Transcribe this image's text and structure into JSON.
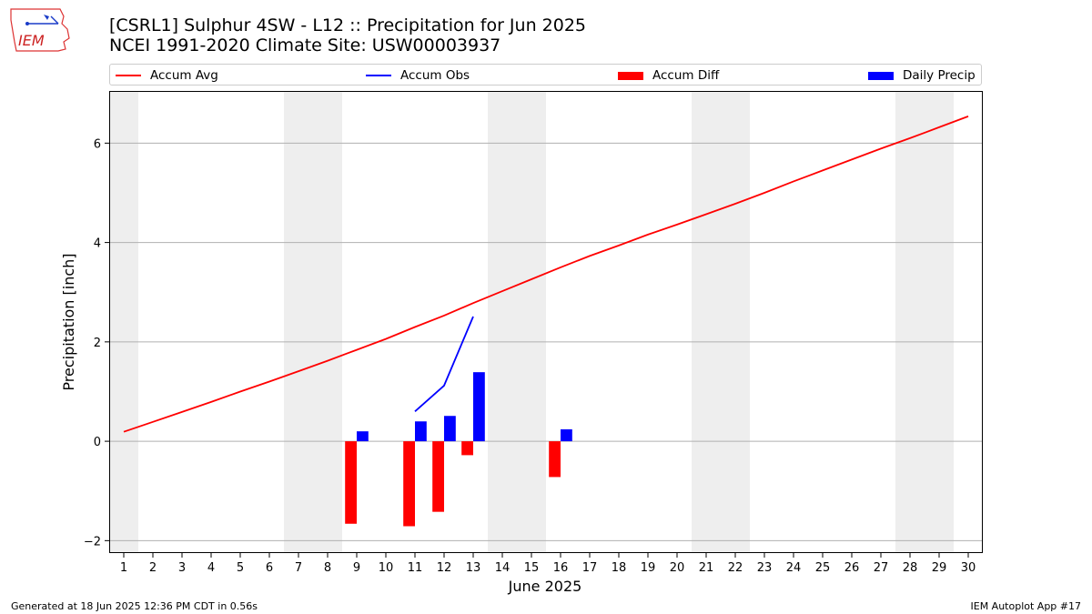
{
  "header": {
    "title_line1": "[CSRL1] Sulphur 4SW - L12 :: Precipitation for Jun 2025",
    "title_line2": "NCEI 1991-2020 Climate Site: USW00003937",
    "logo_text": "IEM"
  },
  "legend": {
    "items": [
      {
        "label": "Accum Avg",
        "kind": "line",
        "color": "#ff0000"
      },
      {
        "label": "Accum Obs",
        "kind": "line",
        "color": "#0000ff"
      },
      {
        "label": "Accum Diff",
        "kind": "bar",
        "color": "#ff0000"
      },
      {
        "label": "Daily Precip",
        "kind": "bar",
        "color": "#0000ff"
      }
    ]
  },
  "footer": {
    "left": "Generated at 18 Jun 2025 12:36 PM CDT in 0.56s",
    "right": "IEM Autoplot App #17"
  },
  "chart_data": {
    "type": "bar",
    "title": "[CSRL1] Sulphur 4SW - L12 :: Precipitation for Jun 2025",
    "subtitle": "NCEI 1991-2020 Climate Site: USW00003937",
    "xlabel": "June 2025",
    "ylabel": "Precipitation [inch]",
    "xlim": [
      0.5,
      30.5
    ],
    "ylim": [
      -2.25,
      7.05
    ],
    "yticks": [
      -2,
      0,
      2,
      4,
      6
    ],
    "x": [
      1,
      2,
      3,
      4,
      5,
      6,
      7,
      8,
      9,
      10,
      11,
      12,
      13,
      14,
      15,
      16,
      17,
      18,
      19,
      20,
      21,
      22,
      23,
      24,
      25,
      26,
      27,
      28,
      29,
      30
    ],
    "grid": "horizontal",
    "legend_position": "top",
    "weekend_shading": [
      [
        0.5,
        1.5
      ],
      [
        6.5,
        8.5
      ],
      [
        13.5,
        15.5
      ],
      [
        20.5,
        22.5
      ],
      [
        27.5,
        29.5
      ]
    ],
    "series": [
      {
        "name": "Accum Avg",
        "kind": "line",
        "color": "#ff0000",
        "x": [
          1,
          2,
          3,
          4,
          5,
          6,
          7,
          8,
          9,
          10,
          11,
          12,
          13,
          14,
          15,
          16,
          17,
          18,
          19,
          20,
          21,
          22,
          23,
          24,
          25,
          26,
          27,
          28,
          29,
          30
        ],
        "values": [
          0.19,
          0.39,
          0.59,
          0.79,
          1.0,
          1.2,
          1.41,
          1.62,
          1.84,
          2.06,
          2.3,
          2.53,
          2.78,
          3.02,
          3.26,
          3.5,
          3.73,
          3.94,
          4.16,
          4.36,
          4.57,
          4.78,
          5.0,
          5.23,
          5.45,
          5.67,
          5.89,
          6.1,
          6.32,
          6.54
        ]
      },
      {
        "name": "Accum Obs",
        "kind": "line",
        "color": "#0000ff",
        "x": [
          11,
          12,
          13
        ],
        "values": [
          0.6,
          1.12,
          2.51
        ]
      },
      {
        "name": "Accum Diff",
        "kind": "bar",
        "color": "#ff0000",
        "x": [
          9,
          11,
          12,
          13,
          16
        ],
        "values": [
          -1.66,
          -1.71,
          -1.42,
          -0.28,
          -0.72
        ]
      },
      {
        "name": "Daily Precip",
        "kind": "bar",
        "color": "#0000ff",
        "x": [
          9,
          11,
          12,
          13,
          16
        ],
        "values": [
          0.2,
          0.4,
          0.51,
          1.39,
          0.24
        ]
      }
    ]
  }
}
